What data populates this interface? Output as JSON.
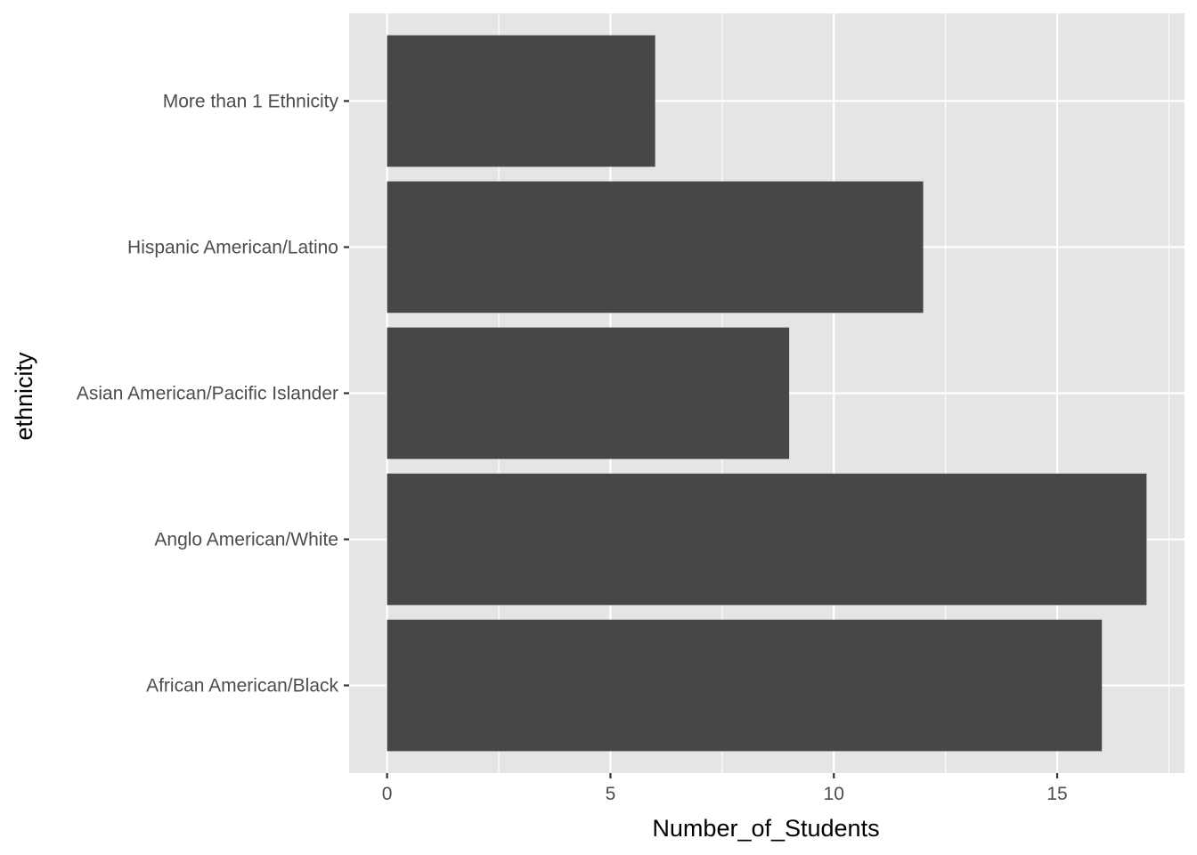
{
  "chart_data": {
    "type": "bar",
    "orientation": "horizontal",
    "title": "",
    "xlabel": "Number_of_Students",
    "ylabel": "ethnicity",
    "categories": [
      "African American/Black",
      "Anglo American/White",
      "Asian American/Pacific Islander",
      "Hispanic American/Latino",
      "More than 1 Ethnicity"
    ],
    "values": [
      16,
      17,
      9,
      12,
      6
    ],
    "xlim": [
      -0.85,
      17.85
    ],
    "xticks": [
      0,
      5,
      10,
      15
    ],
    "grid": true,
    "legend": "none",
    "colors": {
      "bar": "#474747",
      "panel_background": "#e5e5e5",
      "grid_major": "#ffffff",
      "tick_label": "#4d4d4d",
      "tick_mark": "#333333"
    }
  }
}
